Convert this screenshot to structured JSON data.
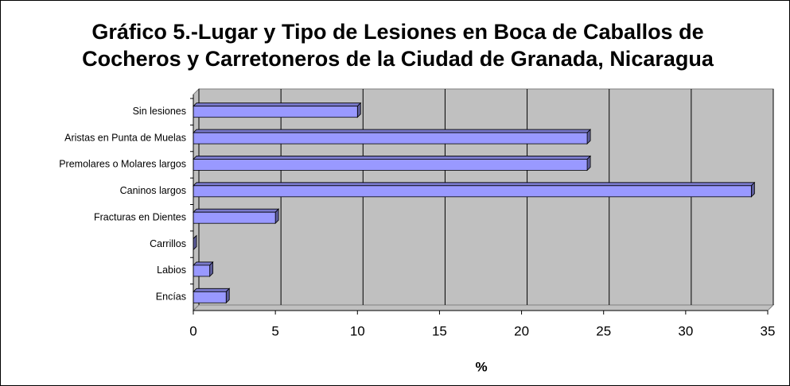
{
  "chart_data": {
    "type": "bar",
    "title": [
      "Gráfico 5.-Lugar y Tipo de Lesiones en Boca de Caballos de",
      "Cocheros y Carretoneros de la Ciudad de Granada, Nicaragua"
    ],
    "categories": [
      "Sin lesiones",
      "Aristas en Punta de Muelas",
      "Premolares o Molares largos",
      "Caninos largos",
      "Fracturas en Dientes",
      "Carrillos",
      "Labios",
      "Encías"
    ],
    "values": [
      10,
      24,
      24,
      34,
      5,
      0,
      1,
      2
    ],
    "color": "#9999ff",
    "xlabel": "%",
    "xlim": [
      0,
      35
    ],
    "xticks": [
      0,
      5,
      10,
      15,
      20,
      25,
      30,
      35
    ],
    "grid": true
  }
}
